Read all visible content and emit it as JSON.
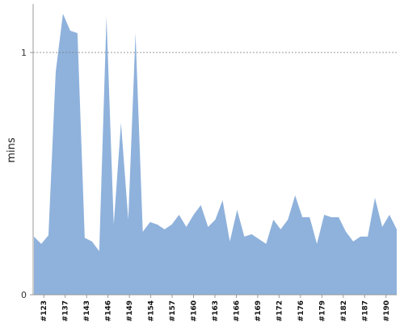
{
  "chart_data": {
    "type": "area",
    "title": "",
    "xlabel": "",
    "ylabel": "mins",
    "ylim": [
      0,
      1.2
    ],
    "y_ticks": [
      0,
      1
    ],
    "reference_line": 1,
    "grid": false,
    "color": "#8fb2dc",
    "x_tick_labels": [
      "#123",
      "#137",
      "#143",
      "#146",
      "#149",
      "#154",
      "#157",
      "#160",
      "#163",
      "#166",
      "#169",
      "#172",
      "#176",
      "#179",
      "#182",
      "#187",
      "#190"
    ],
    "values": [
      0.24,
      0.21,
      0.245,
      0.92,
      1.16,
      1.09,
      1.08,
      0.235,
      0.22,
      0.18,
      1.15,
      0.29,
      0.71,
      0.31,
      1.08,
      0.26,
      0.3,
      0.29,
      0.27,
      0.29,
      0.33,
      0.28,
      0.33,
      0.37,
      0.28,
      0.31,
      0.39,
      0.22,
      0.35,
      0.24,
      0.25,
      0.23,
      0.21,
      0.31,
      0.27,
      0.31,
      0.41,
      0.32,
      0.32,
      0.21,
      0.33,
      0.32,
      0.32,
      0.26,
      0.22,
      0.24,
      0.24,
      0.4,
      0.28,
      0.33,
      0.27
    ]
  }
}
